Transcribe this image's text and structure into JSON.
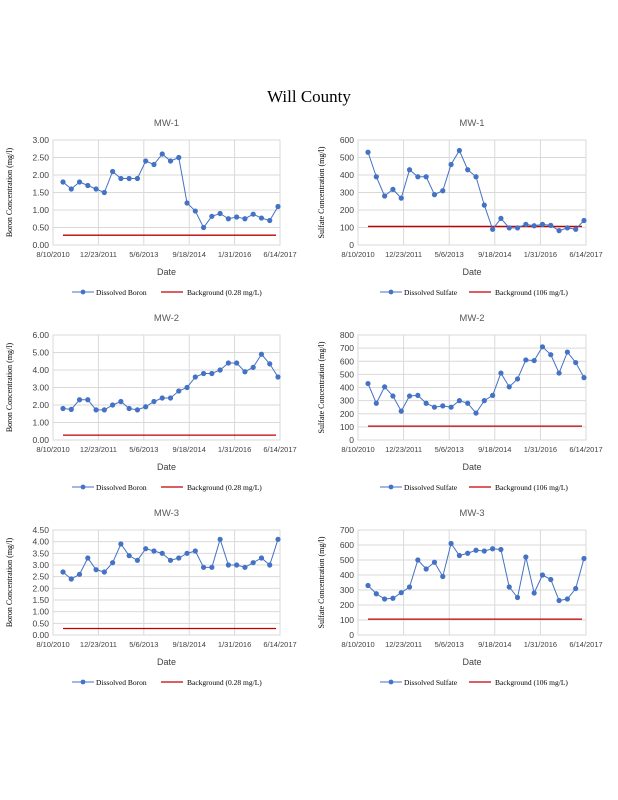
{
  "page": {
    "title": "Will County"
  },
  "chart_data": [
    {
      "id": "boron-mw1",
      "type": "line",
      "title": "MW-1",
      "xlabel": "Date",
      "ylabel": "Boron Concentration (mg/l)",
      "ylim": [
        0,
        3
      ],
      "yticks": [
        "0.00",
        "0.50",
        "1.00",
        "1.50",
        "2.00",
        "2.50",
        "3.00"
      ],
      "ystep": 0.5,
      "xticks": [
        "8/10/2010",
        "12/23/2011",
        "5/6/2013",
        "9/18/2014",
        "1/31/2016",
        "6/14/2017"
      ],
      "series": [
        {
          "name": "Dissolved Boron",
          "color": "#4472C4",
          "marker": "circle",
          "values": [
            1.8,
            1.6,
            1.8,
            1.7,
            1.6,
            1.5,
            2.1,
            1.9,
            1.9,
            1.9,
            2.4,
            2.3,
            2.6,
            2.4,
            2.5,
            1.2,
            0.97,
            0.5,
            0.82,
            0.9,
            0.75,
            0.8,
            0.75,
            0.88,
            0.77,
            0.7,
            1.1
          ]
        },
        {
          "name": "Background  (0.28 mg/L)",
          "color": "#C00000",
          "constant": 0.28
        }
      ],
      "grid": true,
      "legend": "bottom"
    },
    {
      "id": "sulfate-mw1",
      "type": "line",
      "title": "MW-1",
      "xlabel": "Date",
      "ylabel": "Sulfate Concentration (mg/l)",
      "ylim": [
        0,
        600
      ],
      "yticks": [
        "0",
        "100",
        "200",
        "300",
        "400",
        "500",
        "600"
      ],
      "ystep": 100,
      "xticks": [
        "8/10/2010",
        "12/23/2011",
        "5/6/2013",
        "9/18/2014",
        "1/31/2016",
        "6/14/2017"
      ],
      "series": [
        {
          "name": "Dissolved Sulfate",
          "color": "#4472C4",
          "marker": "circle",
          "values": [
            530,
            390,
            280,
            318,
            268,
            430,
            390,
            390,
            288,
            310,
            460,
            540,
            430,
            390,
            228,
            90,
            152,
            98,
            98,
            118,
            110,
            118,
            112,
            82,
            98,
            90,
            140
          ]
        },
        {
          "name": "Background  (106 mg/L)",
          "color": "#C00000",
          "constant": 106
        }
      ],
      "grid": true,
      "legend": "bottom"
    },
    {
      "id": "boron-mw2",
      "type": "line",
      "title": "MW-2",
      "xlabel": "Date",
      "ylabel": "Boron Concentration (mg/l)",
      "ylim": [
        0,
        6
      ],
      "yticks": [
        "0.00",
        "1.00",
        "2.00",
        "3.00",
        "4.00",
        "5.00",
        "6.00"
      ],
      "ystep": 1,
      "xticks": [
        "8/10/2010",
        "12/23/2011",
        "5/6/2013",
        "9/18/2014",
        "1/31/2016",
        "6/14/2017"
      ],
      "series": [
        {
          "name": "Dissolved Boron",
          "color": "#4472C4",
          "marker": "circle",
          "values": [
            1.8,
            1.75,
            2.3,
            2.3,
            1.72,
            1.72,
            2.0,
            2.2,
            1.8,
            1.72,
            1.9,
            2.2,
            2.4,
            2.4,
            2.8,
            3.0,
            3.6,
            3.8,
            3.8,
            4.0,
            4.4,
            4.4,
            3.9,
            4.15,
            4.9,
            4.35,
            3.6
          ]
        },
        {
          "name": "Background  (0.28 mg/L)",
          "color": "#C00000",
          "constant": 0.28
        }
      ],
      "grid": true,
      "legend": "bottom"
    },
    {
      "id": "sulfate-mw2",
      "type": "line",
      "title": "MW-2",
      "xlabel": "Date",
      "ylabel": "Sulfate Concentration (mg/l)",
      "ylim": [
        0,
        800
      ],
      "yticks": [
        "0",
        "100",
        "200",
        "300",
        "400",
        "500",
        "600",
        "700",
        "800"
      ],
      "ystep": 100,
      "xticks": [
        "8/10/2010",
        "12/23/2011",
        "5/6/2013",
        "9/18/2014",
        "1/31/2016",
        "6/14/2017"
      ],
      "series": [
        {
          "name": "Dissolved Sulfate",
          "color": "#4472C4",
          "marker": "circle",
          "values": [
            430,
            280,
            405,
            335,
            220,
            335,
            340,
            280,
            250,
            260,
            250,
            300,
            280,
            205,
            300,
            340,
            510,
            405,
            465,
            610,
            605,
            710,
            650,
            510,
            670,
            590,
            475
          ]
        },
        {
          "name": "Background  (106 mg/L)",
          "color": "#C00000",
          "constant": 106
        }
      ],
      "grid": true,
      "legend": "bottom"
    },
    {
      "id": "boron-mw3",
      "type": "line",
      "title": "MW-3",
      "xlabel": "Date",
      "ylabel": "Boron Concentration (mg/l)",
      "ylim": [
        0,
        4.5
      ],
      "yticks": [
        "0.00",
        "0.50",
        "1.00",
        "1.50",
        "2.00",
        "2.50",
        "3.00",
        "3.50",
        "4.00",
        "4.50"
      ],
      "ystep": 0.5,
      "xticks": [
        "8/10/2010",
        "12/23/2011",
        "5/6/2013",
        "9/18/2014",
        "1/31/2016",
        "6/14/2017"
      ],
      "series": [
        {
          "name": "Dissolved Boron",
          "color": "#4472C4",
          "marker": "circle",
          "values": [
            2.7,
            2.4,
            2.6,
            3.3,
            2.8,
            2.7,
            3.1,
            3.9,
            3.4,
            3.2,
            3.7,
            3.6,
            3.5,
            3.2,
            3.3,
            3.5,
            3.6,
            2.9,
            2.9,
            4.1,
            3.0,
            3.0,
            2.9,
            3.1,
            3.3,
            3.0,
            4.1
          ]
        },
        {
          "name": "Background  (0.28 mg/L)",
          "color": "#C00000",
          "constant": 0.28
        }
      ],
      "grid": true,
      "legend": "bottom"
    },
    {
      "id": "sulfate-mw3",
      "type": "line",
      "title": "MW-3",
      "xlabel": "Date",
      "ylabel": "Sulfate Concentration (mg/l)",
      "ylim": [
        0,
        700
      ],
      "yticks": [
        "0",
        "100",
        "200",
        "300",
        "400",
        "500",
        "600",
        "700"
      ],
      "ystep": 100,
      "xticks": [
        "8/10/2010",
        "12/23/2011",
        "5/6/2013",
        "9/18/2014",
        "1/31/2016",
        "6/14/2017"
      ],
      "series": [
        {
          "name": "Dissolved Sulfate",
          "color": "#4472C4",
          "marker": "circle",
          "values": [
            330,
            275,
            240,
            245,
            282,
            320,
            500,
            440,
            485,
            390,
            610,
            530,
            545,
            565,
            560,
            575,
            570,
            320,
            250,
            520,
            280,
            400,
            370,
            230,
            240,
            310,
            510
          ]
        },
        {
          "name": "Background  (106 mg/L)",
          "color": "#C00000",
          "constant": 106
        }
      ],
      "grid": true,
      "legend": "bottom"
    }
  ]
}
